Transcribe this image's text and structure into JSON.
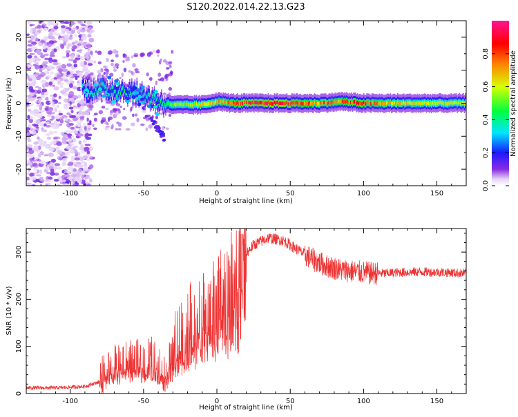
{
  "title": "S120.2022.014.22.13.G23",
  "chart_data": [
    {
      "type": "heatmap",
      "xlabel": "Height of straight line (km)",
      "ylabel": "Frequency (Hz)",
      "xlim": [
        -130,
        170
      ],
      "ylim": [
        -25,
        25
      ],
      "xticks": [
        -100,
        -50,
        0,
        50,
        100,
        150
      ],
      "yticks": [
        -20,
        -10,
        0,
        10,
        20
      ],
      "colorbar": {
        "label": "Normalized spectral amplitude",
        "range": [
          0.0,
          1.0
        ],
        "ticks": [
          0.0,
          0.2,
          0.4,
          0.6,
          0.8
        ],
        "colormap": "hsv-rainbow (white/lavender low → violet → blue → cyan → green → yellow → red → magenta high)"
      },
      "ridge": {
        "description": "Spectral energy concentrated near 0 Hz above ~-35 km; scattered energy at low heights",
        "points": [
          {
            "x": -92,
            "y": 4.5,
            "amp": 0.35
          },
          {
            "x": -80,
            "y": 4.0,
            "amp": 0.45
          },
          {
            "x": -70,
            "y": 4.0,
            "amp": 0.4
          },
          {
            "x": -60,
            "y": 3.5,
            "amp": 0.45
          },
          {
            "x": -50,
            "y": 2.5,
            "amp": 0.4
          },
          {
            "x": -40,
            "y": 0.5,
            "amp": 0.45
          },
          {
            "x": -30,
            "y": -0.5,
            "amp": 0.55
          },
          {
            "x": -20,
            "y": -0.5,
            "amp": 0.6
          },
          {
            "x": -10,
            "y": -0.5,
            "amp": 0.65
          },
          {
            "x": 0,
            "y": 0.5,
            "amp": 0.7
          },
          {
            "x": 10,
            "y": 0.0,
            "amp": 0.8
          },
          {
            "x": 25,
            "y": 0.0,
            "amp": 0.9
          },
          {
            "x": 40,
            "y": 0.0,
            "amp": 0.95
          },
          {
            "x": 55,
            "y": 0.0,
            "amp": 0.85
          },
          {
            "x": 70,
            "y": 0.0,
            "amp": 0.75
          },
          {
            "x": 85,
            "y": 0.5,
            "amp": 0.8
          },
          {
            "x": 100,
            "y": 0.0,
            "amp": 0.85
          },
          {
            "x": 115,
            "y": 0.0,
            "amp": 0.7
          },
          {
            "x": 130,
            "y": 0.0,
            "amp": 0.65
          },
          {
            "x": 150,
            "y": 0.0,
            "amp": 0.6
          },
          {
            "x": 170,
            "y": 0.0,
            "amp": 0.6
          }
        ]
      }
    },
    {
      "type": "line",
      "xlabel": "Height of straight line (km)",
      "ylabel": "SNR (10 * v/v)",
      "xlim": [
        -130,
        170
      ],
      "ylim": [
        0,
        350
      ],
      "xticks": [
        -100,
        -50,
        0,
        50,
        100,
        150
      ],
      "yticks": [
        0,
        100,
        200,
        300
      ],
      "color": "#ee3333",
      "series": [
        {
          "x": [
            -130,
            -110,
            -90,
            -80,
            -75,
            -65,
            -55,
            -45,
            -35,
            -25,
            -15,
            -5,
            5,
            15,
            25,
            35,
            45,
            55,
            65,
            75,
            85,
            95,
            105,
            115,
            125,
            140,
            155,
            170
          ],
          "values": [
            12,
            12,
            15,
            25,
            55,
            65,
            70,
            80,
            45,
            120,
            160,
            180,
            230,
            280,
            315,
            330,
            325,
            305,
            285,
            270,
            262,
            258,
            255,
            255,
            257,
            258,
            257,
            255
          ]
        }
      ]
    }
  ]
}
